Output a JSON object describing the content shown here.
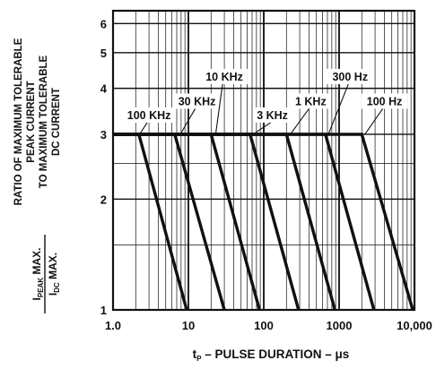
{
  "chart_data": {
    "type": "line",
    "title": "",
    "ylabel_lines": [
      "RATIO OF MAXIMUM TOLERABLE",
      "PEAK CURRENT",
      "TO MAXIMUM TOLERABLE",
      "DC CURRENT"
    ],
    "ylabel_fraction": {
      "num_main": "I",
      "num_sub": "PEAK",
      "num_tail": " MAX.",
      "den_main": "I",
      "den_sub": "DC",
      "den_tail": " MAX."
    },
    "xlabel": {
      "t": "t",
      "sub": "P",
      "rest": " – PULSE DURATION – μs"
    },
    "xscale": "log",
    "yscale": "log",
    "xlim": [
      1,
      10000
    ],
    "ylim": [
      1,
      6.5
    ],
    "xtick_labels": [
      {
        "value": 1,
        "label": "1.0"
      },
      {
        "value": 10,
        "label": "10"
      },
      {
        "value": 100,
        "label": "100"
      },
      {
        "value": 1000,
        "label": "1000"
      },
      {
        "value": 10000,
        "label": "10,000"
      }
    ],
    "ytick_labels": [
      {
        "value": 1,
        "label": "1"
      },
      {
        "value": 2,
        "label": "2"
      },
      {
        "value": 3,
        "label": "3"
      },
      {
        "value": 4,
        "label": "4"
      },
      {
        "value": 5,
        "label": "5"
      },
      {
        "value": 6,
        "label": "6"
      }
    ],
    "grid": true,
    "series": [
      {
        "name": "100 KHz",
        "points": [
          [
            1,
            3
          ],
          [
            2.2,
            3
          ],
          [
            9.5,
            1
          ]
        ]
      },
      {
        "name": "30 KHz",
        "points": [
          [
            1,
            3
          ],
          [
            6.6,
            3
          ],
          [
            30,
            1
          ]
        ]
      },
      {
        "name": "10 KHz",
        "points": [
          [
            1,
            3
          ],
          [
            20,
            3
          ],
          [
            88,
            1
          ]
        ]
      },
      {
        "name": "3 KHz",
        "points": [
          [
            1,
            3
          ],
          [
            66,
            3
          ],
          [
            290,
            1
          ]
        ]
      },
      {
        "name": "1 KHz",
        "points": [
          [
            1,
            3
          ],
          [
            200,
            3
          ],
          [
            880,
            1
          ]
        ]
      },
      {
        "name": "300 Hz",
        "points": [
          [
            1,
            3
          ],
          [
            660,
            3
          ],
          [
            2900,
            1
          ]
        ]
      },
      {
        "name": "100 Hz",
        "points": [
          [
            1,
            3
          ],
          [
            2000,
            3
          ],
          [
            9500,
            1
          ]
        ]
      }
    ],
    "annotations": [
      {
        "text": "100 KHz",
        "x": 3.0,
        "y": 3.3,
        "target_x": 2.25,
        "target_y": 3
      },
      {
        "text": "30 KHz",
        "x": 13,
        "y": 3.6,
        "target_x": 7.8,
        "target_y": 3
      },
      {
        "text": "10 KHz",
        "x": 30,
        "y": 4.2,
        "target_x": 23,
        "target_y": 3
      },
      {
        "text": "3 KHz",
        "x": 130,
        "y": 3.3,
        "target_x": 72,
        "target_y": 3
      },
      {
        "text": "1 KHz",
        "x": 420,
        "y": 3.6,
        "target_x": 225,
        "target_y": 3
      },
      {
        "text": "300 Hz",
        "x": 1400,
        "y": 4.2,
        "target_x": 720,
        "target_y": 3
      },
      {
        "text": "100 Hz",
        "x": 4000,
        "y": 3.6,
        "target_x": 2200,
        "target_y": 3
      }
    ]
  }
}
